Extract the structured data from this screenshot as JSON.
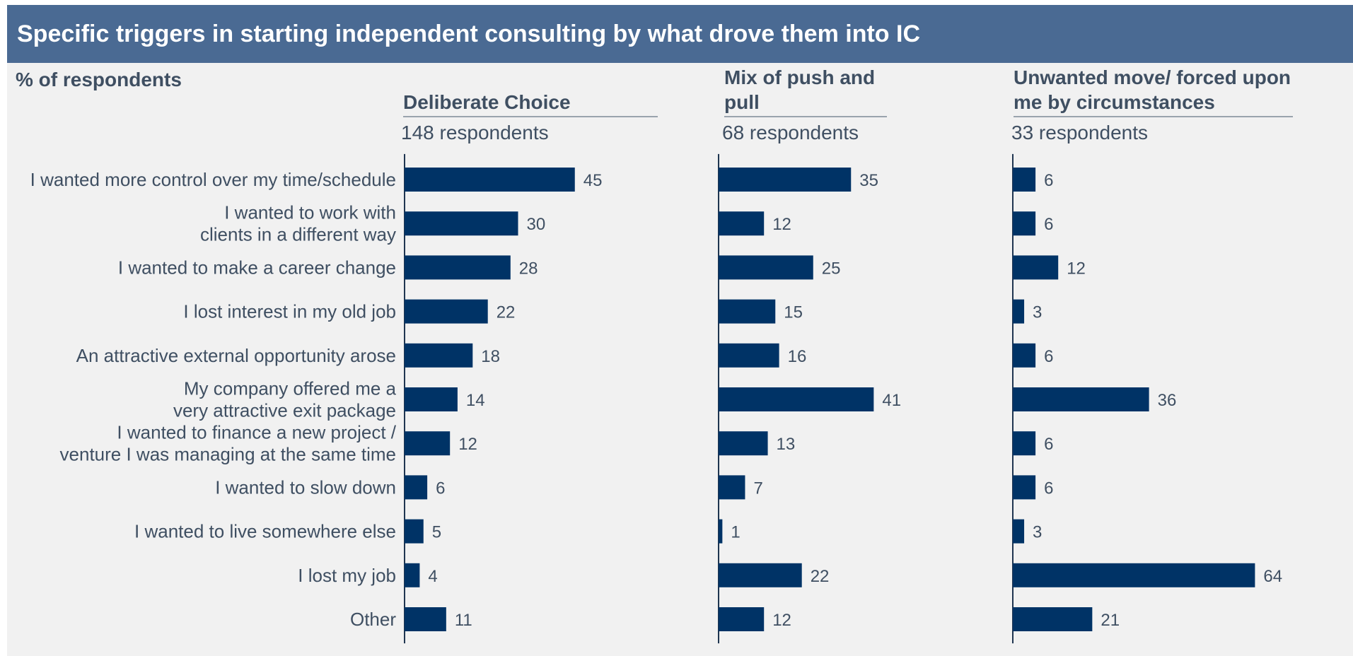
{
  "header": {
    "title": "Specific triggers in starting independent consulting by what drove them into IC",
    "unit_label": "% of respondents"
  },
  "colors": {
    "bar": "#003366",
    "title_bg": "#4a6a93",
    "text": "#3f4f62",
    "background": "#f1f1f1"
  },
  "panels": [
    {
      "title": "Deliberate Choice",
      "subtitle": "148 respondents"
    },
    {
      "title": "Mix of push and pull",
      "subtitle": "68 respondents"
    },
    {
      "title": "Unwanted move/ forced upon me by circumstances",
      "subtitle": "33 respondents"
    }
  ],
  "chart_data": {
    "type": "bar",
    "orientation": "horizontal",
    "categories": [
      [
        "I wanted more control over my time/schedule"
      ],
      [
        "I wanted to work with",
        "clients in a different way"
      ],
      [
        "I wanted to make a career change"
      ],
      [
        "I lost interest in my old job"
      ],
      [
        "An attractive external opportunity arose"
      ],
      [
        "My company offered me a",
        "very attractive exit package"
      ],
      [
        "I wanted to finance a new project /",
        "venture I was managing at the same time"
      ],
      [
        "I wanted to slow down"
      ],
      [
        "I wanted to live somewhere else"
      ],
      [
        "I lost my job"
      ],
      [
        "Other"
      ]
    ],
    "series": [
      {
        "name": "Deliberate Choice",
        "values": [
          45,
          30,
          28,
          22,
          18,
          14,
          12,
          6,
          5,
          4,
          11
        ]
      },
      {
        "name": "Mix of push and pull",
        "values": [
          35,
          12,
          25,
          15,
          16,
          41,
          13,
          7,
          1,
          22,
          12
        ]
      },
      {
        "name": "Unwanted move/ forced upon me by circumstances",
        "values": [
          6,
          6,
          12,
          3,
          6,
          36,
          6,
          6,
          3,
          64,
          21
        ]
      }
    ],
    "grid": false,
    "legend": "none"
  }
}
